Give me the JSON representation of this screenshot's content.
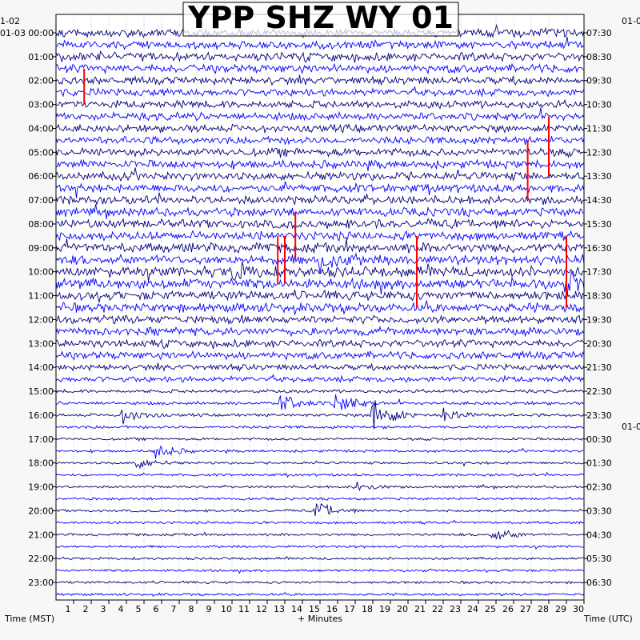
{
  "chart_data": {
    "type": "line",
    "title": "YPP SHZ WY 01",
    "xlabel": "+ Minutes",
    "left_axis_label": "Time (MST)",
    "right_axis_label": "Time (UTC)",
    "xlim": [
      0,
      30
    ],
    "x_ticks": [
      "1",
      "2",
      "3",
      "4",
      "5",
      "6",
      "7",
      "8",
      "9",
      "10",
      "11",
      "12",
      "13",
      "14",
      "15",
      "16",
      "17",
      "18",
      "19",
      "20",
      "21",
      "22",
      "23",
      "24",
      "25",
      "26",
      "27",
      "28",
      "29",
      "30"
    ],
    "left_date_labels": [
      "1-02",
      "01-03"
    ],
    "left_hour_labels": [
      "00:00",
      "01:00",
      "02:00",
      "03:00",
      "04:00",
      "05:00",
      "06:00",
      "07:00",
      "08:00",
      "09:00",
      "10:00",
      "11:00",
      "12:00",
      "13:00",
      "14:00",
      "15:00",
      "16:00",
      "17:00",
      "18:00",
      "19:00",
      "20:00",
      "21:00",
      "22:00",
      "23:00"
    ],
    "right_date_labels": [
      "01-0",
      "01-0"
    ],
    "right_hour_labels": [
      "07:30",
      "08:30",
      "09:30",
      "10:30",
      "11:30",
      "12:30",
      "13:30",
      "14:30",
      "15:30",
      "16:30",
      "17:30",
      "18:30",
      "19:30",
      "20:30",
      "21:30",
      "22:30",
      "23:30",
      "00:30",
      "01:30",
      "02:30",
      "03:30",
      "04:30",
      "05:30",
      "06:30"
    ],
    "traces_per_hour": 2,
    "trace_colors": [
      "#00007a",
      "#0000ff"
    ],
    "clip_color": "#ff0000",
    "noise_amplitude_by_hour": [
      1.0,
      1.0,
      0.9,
      0.9,
      0.9,
      0.95,
      1.0,
      1.0,
      1.05,
      1.15,
      1.25,
      1.1,
      0.95,
      0.9,
      0.7,
      0.4,
      0.35,
      0.3,
      0.3,
      0.3,
      0.3,
      0.3,
      0.3,
      0.3
    ],
    "events": [
      {
        "trace": 31,
        "minute": 15.9,
        "amplitude": 3.2
      },
      {
        "trace": 32,
        "minute": 3.8,
        "amplitude": 2.4
      },
      {
        "trace": 32,
        "minute": 18.0,
        "amplitude": 6.0
      },
      {
        "trace": 32,
        "minute": 22.0,
        "amplitude": 2.5
      },
      {
        "trace": 31,
        "minute": 12.8,
        "amplitude": 3.0
      },
      {
        "trace": 35,
        "minute": 5.6,
        "amplitude": 2.6
      },
      {
        "trace": 36,
        "minute": 4.6,
        "amplitude": 1.8
      },
      {
        "trace": 38,
        "minute": 17.0,
        "amplitude": 1.5
      },
      {
        "trace": 40,
        "minute": 14.8,
        "amplitude": 3.0
      },
      {
        "trace": 42,
        "minute": 24.8,
        "amplitude": 2.4
      },
      {
        "trace": 19,
        "minute": 15.0,
        "amplitude": 3.0
      },
      {
        "trace": 20,
        "minute": 10.0,
        "amplitude": 2.5
      },
      {
        "trace": 21,
        "minute": 29.0,
        "amplitude": 2.8
      }
    ],
    "clipped_spikes": [
      {
        "start_trace": 3,
        "end_trace": 6,
        "minute": 1.6
      },
      {
        "start_trace": 9,
        "end_trace": 14,
        "minute": 26.8
      },
      {
        "start_trace": 7,
        "end_trace": 12,
        "minute": 28.0
      },
      {
        "start_trace": 15,
        "end_trace": 19,
        "minute": 13.6
      },
      {
        "start_trace": 17,
        "end_trace": 21,
        "minute": 12.6
      },
      {
        "start_trace": 17,
        "end_trace": 21,
        "minute": 13.0
      },
      {
        "start_trace": 17,
        "end_trace": 23,
        "minute": 20.5
      },
      {
        "start_trace": 17,
        "end_trace": 23,
        "minute": 29.0
      }
    ],
    "grid": true,
    "legend": "none"
  }
}
